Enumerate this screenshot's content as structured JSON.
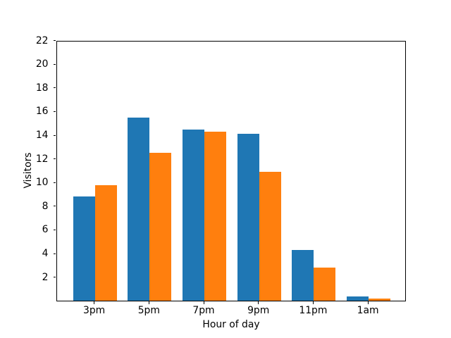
{
  "chart_data": {
    "type": "bar",
    "categories": [
      "3pm",
      "5pm",
      "7pm",
      "9pm",
      "11pm",
      "1am"
    ],
    "series": [
      {
        "name": "blue",
        "color": "#1f77b4",
        "values": [
          8.8,
          15.5,
          14.5,
          14.1,
          4.3,
          0.35
        ]
      },
      {
        "name": "orange",
        "color": "#ff7f0e",
        "values": [
          9.8,
          12.5,
          14.3,
          10.9,
          2.8,
          0.22
        ]
      }
    ],
    "xlabel": "Hour of day",
    "ylabel": "Visitors",
    "ylim": [
      0,
      22
    ],
    "yticks": [
      2,
      4,
      6,
      8,
      10,
      12,
      14,
      16,
      18,
      20,
      22
    ],
    "grid": false,
    "legend_position": "none",
    "axis_color": "#000000",
    "background": "#ffffff"
  }
}
